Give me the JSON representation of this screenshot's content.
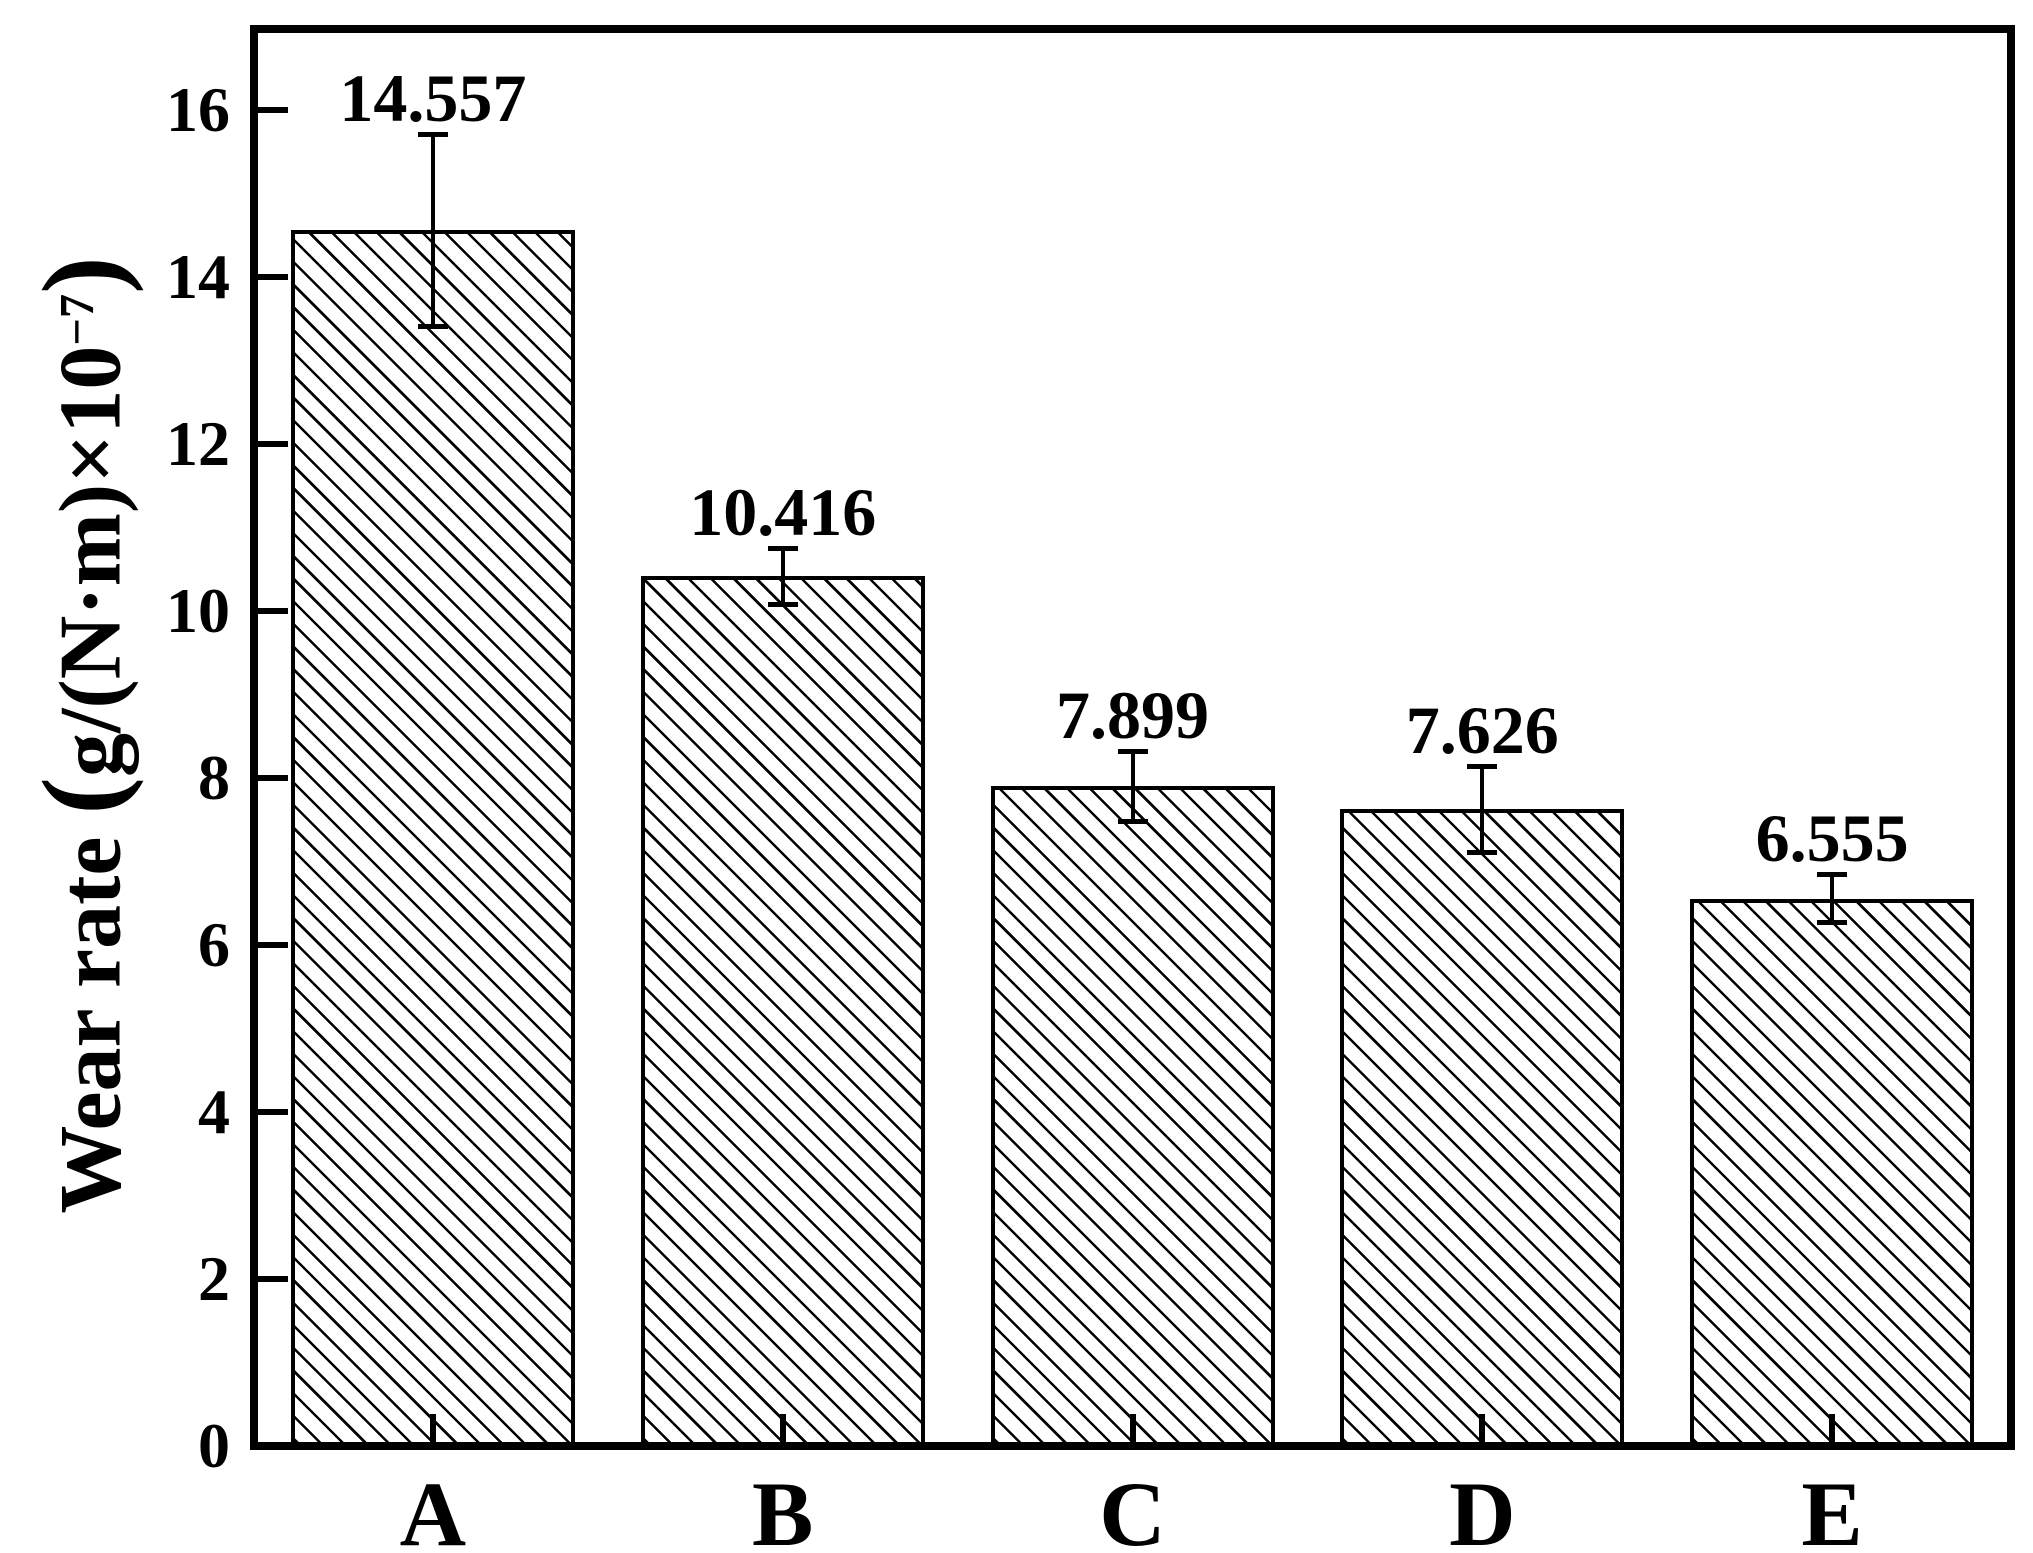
{
  "page": {
    "background": "#ffffff",
    "foreground": "#000000"
  },
  "chart_data": {
    "type": "bar",
    "title": "",
    "xlabel": "",
    "ylabel": "Wear rate (g/(N·m)×10⁻⁷)",
    "ylabel_parts": {
      "prefix": "Wear rate ",
      "open_paren": "(",
      "formula": "g/(N·m)×10",
      "exponent": "−7",
      "close_paren": ")"
    },
    "categories": [
      "A",
      "B",
      "C",
      "D",
      "E"
    ],
    "values": [
      14.557,
      10.416,
      7.899,
      7.626,
      6.555
    ],
    "errors": [
      1.15,
      0.34,
      0.43,
      0.52,
      0.29
    ],
    "value_labels": [
      "14.557",
      "10.416",
      "7.899",
      "7.626",
      "6.555"
    ],
    "y_ticks": [
      0,
      2,
      4,
      6,
      8,
      10,
      12,
      14,
      16
    ],
    "y_tick_labels": [
      "0",
      "2",
      "4",
      "6",
      "8",
      "10",
      "12",
      "14",
      "16"
    ],
    "ylim": [
      0,
      17
    ],
    "grid": false,
    "legend": false,
    "bar_style": {
      "fill": "diagonal-hatch",
      "hatch_direction": "\\",
      "edge_color": "#000000",
      "bar_color": "#ffffff"
    }
  }
}
